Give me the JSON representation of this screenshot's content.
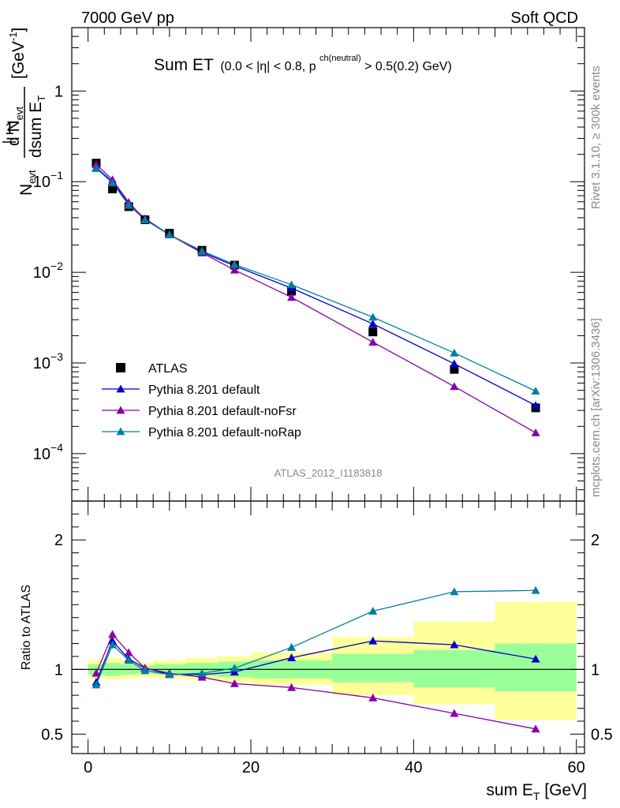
{
  "header": {
    "left": "7000 GeV pp",
    "right": "Soft QCD"
  },
  "title": {
    "main": "Sum ET",
    "cuts_a": "(0.0 < |η| < 0.8, p",
    "cuts_sup": "ch(neutral)",
    "cuts_b": " > 0.5(0.2) GeV)"
  },
  "side_text": {
    "rivet": "Rivet 3.1.10, ≥ 300k events",
    "mcplots": "mcplots.cern.ch [arXiv:1306.3436]"
  },
  "analysis_label": "ATLAS_2012_I1183818",
  "ylabel_main": {
    "num_prefix": "1",
    "den_prefix": "N",
    "den_sub": "evt",
    "frac2_num": "d N",
    "frac2_num_sub": "evt",
    "frac2_den": "dsum E",
    "frac2_den_sub": "T",
    "unit": "[GeV",
    "unit_sup": "-1",
    "unit_close": "]"
  },
  "ylabel_ratio": "Ratio to ATLAS",
  "xlabel": {
    "text": "sum E",
    "sub": "T",
    "unit": " [GeV]"
  },
  "legend": [
    {
      "label": "ATLAS",
      "color": "#000000",
      "marker": "square"
    },
    {
      "label": "Pythia 8.201 default",
      "color": "#0000cc",
      "marker": "triangle"
    },
    {
      "label": "Pythia 8.201 default-noFsr",
      "color": "#8800aa",
      "marker": "triangle"
    },
    {
      "label": "Pythia 8.201 default-noRap",
      "color": "#0080a0",
      "marker": "triangle"
    }
  ],
  "chart_data": {
    "type": "line",
    "x_range": [
      -2,
      61
    ],
    "y_scale": "log",
    "y_range": [
      3e-05,
      5
    ],
    "y_ticks": [
      {
        "value": 1,
        "label": "1"
      },
      {
        "value": 0.1,
        "label": "10",
        "sup": "−1"
      },
      {
        "value": 0.01,
        "label": "10",
        "sup": "−2"
      },
      {
        "value": 0.001,
        "label": "10",
        "sup": "−3"
      },
      {
        "value": 0.0001,
        "label": "10",
        "sup": "−4"
      }
    ],
    "x_ticks": [
      0,
      20,
      40,
      60
    ],
    "bin_edges": [
      0,
      2,
      4,
      6,
      8,
      12,
      16,
      20,
      30,
      40,
      50,
      60
    ],
    "x": [
      1,
      3,
      5,
      7,
      10,
      14,
      18,
      25,
      35,
      45,
      55
    ],
    "series": [
      {
        "name": "ATLAS",
        "values": [
          0.16,
          0.083,
          0.053,
          0.038,
          0.027,
          0.0175,
          0.012,
          0.0062,
          0.0022,
          0.00085,
          0.00032
        ]
      },
      {
        "name": "Pythia 8.201 default",
        "values": [
          0.143,
          0.1,
          0.057,
          0.039,
          0.026,
          0.0167,
          0.0118,
          0.0067,
          0.0027,
          0.00098,
          0.00034
        ]
      },
      {
        "name": "Pythia 8.201 default-noFsr",
        "values": [
          0.155,
          0.105,
          0.059,
          0.038,
          0.026,
          0.0164,
          0.0106,
          0.0053,
          0.0017,
          0.00055,
          0.00017
        ]
      },
      {
        "name": "Pythia 8.201 default-noRap",
        "values": [
          0.14,
          0.097,
          0.055,
          0.038,
          0.026,
          0.0172,
          0.0122,
          0.0073,
          0.0032,
          0.00129,
          0.00049
        ]
      }
    ]
  },
  "ratio_data": {
    "type": "line",
    "y_range": [
      0.35,
      2.3
    ],
    "y_ticks": [
      0.5,
      1,
      2
    ],
    "band_inner": [
      [
        0.96,
        1.04
      ],
      [
        0.95,
        1.05
      ],
      [
        0.96,
        1.04
      ],
      [
        0.97,
        1.03
      ],
      [
        0.96,
        1.04
      ],
      [
        0.95,
        1.05
      ],
      [
        0.94,
        1.06
      ],
      [
        0.93,
        1.07
      ],
      [
        0.9,
        1.12
      ],
      [
        0.86,
        1.15
      ],
      [
        0.83,
        1.2
      ]
    ],
    "band_outer": [
      [
        0.93,
        1.07
      ],
      [
        0.92,
        1.09
      ],
      [
        0.93,
        1.07
      ],
      [
        0.94,
        1.05
      ],
      [
        0.93,
        1.07
      ],
      [
        0.92,
        1.09
      ],
      [
        0.9,
        1.1
      ],
      [
        0.88,
        1.13
      ],
      [
        0.8,
        1.25
      ],
      [
        0.73,
        1.37
      ],
      [
        0.61,
        1.52
      ]
    ],
    "series": [
      {
        "name": "Pythia 8.201 default",
        "values": [
          0.9,
          1.22,
          1.08,
          1.01,
          0.96,
          0.96,
          0.98,
          1.09,
          1.22,
          1.19,
          1.08
        ]
      },
      {
        "name": "Pythia 8.201 default-noFsr",
        "values": [
          0.97,
          1.27,
          1.13,
          1.01,
          0.97,
          0.94,
          0.89,
          0.86,
          0.78,
          0.66,
          0.54
        ]
      },
      {
        "name": "Pythia 8.201 default-noRap",
        "values": [
          0.88,
          1.19,
          1.07,
          0.99,
          0.96,
          0.97,
          1.01,
          1.17,
          1.45,
          1.6,
          1.61
        ]
      }
    ]
  }
}
